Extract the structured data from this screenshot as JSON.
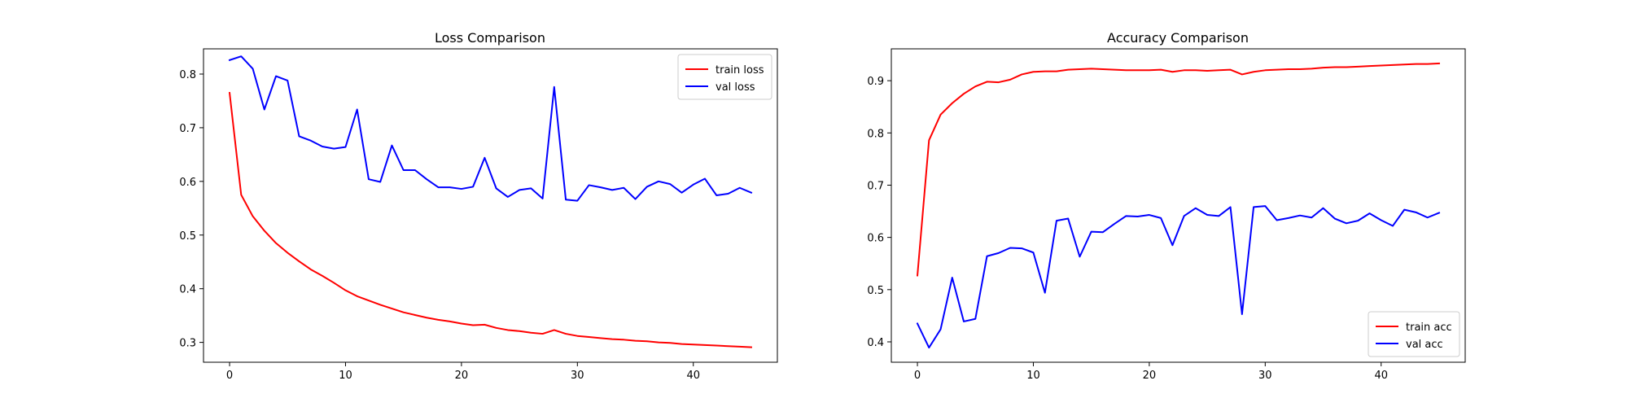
{
  "chart_data": [
    {
      "type": "line",
      "title": "Loss Comparison",
      "xlabel": "",
      "ylabel": "",
      "xlim": [
        -2.25,
        47.25
      ],
      "ylim": [
        0.263,
        0.847
      ],
      "xticks": [
        0,
        10,
        20,
        30,
        40
      ],
      "yticks": [
        0.3,
        0.4,
        0.5,
        0.6,
        0.7,
        0.8
      ],
      "ytick_labels": [
        "0.3",
        "0.4",
        "0.5",
        "0.6",
        "0.7",
        "0.8"
      ],
      "grid": false,
      "legend_position": "upper right",
      "x": [
        0,
        1,
        2,
        3,
        4,
        5,
        6,
        7,
        8,
        9,
        10,
        11,
        12,
        13,
        14,
        15,
        16,
        17,
        18,
        19,
        20,
        21,
        22,
        23,
        24,
        25,
        26,
        27,
        28,
        29,
        30,
        31,
        32,
        33,
        34,
        35,
        36,
        37,
        38,
        39,
        40,
        41,
        42,
        43,
        44,
        45
      ],
      "series": [
        {
          "name": "train loss",
          "color": "#ff0000",
          "values": [
            0.765,
            0.575,
            0.535,
            0.508,
            0.485,
            0.467,
            0.451,
            0.436,
            0.424,
            0.411,
            0.397,
            0.386,
            0.378,
            0.37,
            0.363,
            0.356,
            0.351,
            0.346,
            0.342,
            0.339,
            0.335,
            0.332,
            0.333,
            0.327,
            0.323,
            0.321,
            0.318,
            0.316,
            0.323,
            0.316,
            0.312,
            0.31,
            0.308,
            0.306,
            0.305,
            0.303,
            0.302,
            0.3,
            0.299,
            0.297,
            0.296,
            0.295,
            0.294,
            0.293,
            0.292,
            0.291
          ]
        },
        {
          "name": "val loss",
          "color": "#0000ff",
          "values": [
            0.826,
            0.833,
            0.81,
            0.734,
            0.796,
            0.788,
            0.684,
            0.676,
            0.665,
            0.661,
            0.664,
            0.734,
            0.604,
            0.599,
            0.667,
            0.621,
            0.621,
            0.604,
            0.589,
            0.589,
            0.586,
            0.59,
            0.644,
            0.587,
            0.571,
            0.584,
            0.587,
            0.568,
            0.776,
            0.566,
            0.564,
            0.593,
            0.589,
            0.584,
            0.588,
            0.567,
            0.59,
            0.6,
            0.595,
            0.579,
            0.594,
            0.605,
            0.574,
            0.577,
            0.588,
            0.579
          ]
        }
      ]
    },
    {
      "type": "line",
      "title": "Accuracy Comparison",
      "xlabel": "",
      "ylabel": "",
      "xlim": [
        -2.25,
        47.25
      ],
      "ylim": [
        0.361,
        0.961
      ],
      "xticks": [
        0,
        10,
        20,
        30,
        40
      ],
      "yticks": [
        0.4,
        0.5,
        0.6,
        0.7,
        0.8,
        0.9
      ],
      "ytick_labels": [
        "0.4",
        "0.5",
        "0.6",
        "0.7",
        "0.8",
        "0.9"
      ],
      "grid": false,
      "legend_position": "lower right",
      "x": [
        0,
        1,
        2,
        3,
        4,
        5,
        6,
        7,
        8,
        9,
        10,
        11,
        12,
        13,
        14,
        15,
        16,
        17,
        18,
        19,
        20,
        21,
        22,
        23,
        24,
        25,
        26,
        27,
        28,
        29,
        30,
        31,
        32,
        33,
        34,
        35,
        36,
        37,
        38,
        39,
        40,
        41,
        42,
        43,
        44,
        45
      ],
      "series": [
        {
          "name": "train acc",
          "color": "#ff0000",
          "values": [
            0.527,
            0.786,
            0.835,
            0.857,
            0.875,
            0.889,
            0.898,
            0.897,
            0.902,
            0.912,
            0.917,
            0.918,
            0.918,
            0.921,
            0.922,
            0.923,
            0.922,
            0.921,
            0.92,
            0.92,
            0.92,
            0.921,
            0.917,
            0.92,
            0.92,
            0.919,
            0.92,
            0.921,
            0.912,
            0.917,
            0.92,
            0.921,
            0.922,
            0.922,
            0.923,
            0.925,
            0.926,
            0.926,
            0.927,
            0.928,
            0.929,
            0.93,
            0.931,
            0.932,
            0.932,
            0.933
          ]
        },
        {
          "name": "val acc",
          "color": "#0000ff",
          "values": [
            0.435,
            0.389,
            0.424,
            0.523,
            0.439,
            0.444,
            0.564,
            0.57,
            0.58,
            0.579,
            0.571,
            0.494,
            0.632,
            0.636,
            0.563,
            0.611,
            0.61,
            0.626,
            0.641,
            0.64,
            0.643,
            0.637,
            0.585,
            0.641,
            0.656,
            0.643,
            0.641,
            0.658,
            0.453,
            0.658,
            0.66,
            0.633,
            0.637,
            0.642,
            0.638,
            0.656,
            0.636,
            0.627,
            0.632,
            0.646,
            0.633,
            0.622,
            0.653,
            0.648,
            0.638,
            0.647
          ]
        }
      ]
    }
  ]
}
